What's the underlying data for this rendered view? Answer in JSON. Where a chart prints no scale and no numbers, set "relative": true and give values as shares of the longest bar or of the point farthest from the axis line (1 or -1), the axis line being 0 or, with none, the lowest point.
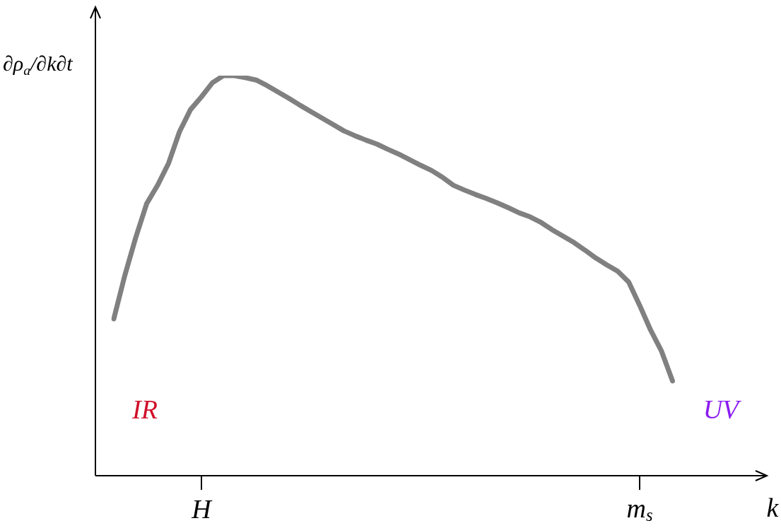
{
  "chart_data": {
    "type": "line",
    "relative": true,
    "xlabel": "k",
    "ylabel": "∂ρ$_{a}$/∂k∂t",
    "grid": false,
    "legend": false,
    "marker": "none",
    "line_style": "solid",
    "categories": [
      null,
      null,
      null,
      null,
      null,
      null,
      null,
      null,
      "H",
      null,
      null,
      null,
      null,
      null,
      null,
      null,
      null,
      null,
      null,
      null,
      null,
      null,
      null,
      null,
      null,
      null,
      null,
      null,
      null,
      null,
      null,
      null,
      null,
      null,
      null,
      null,
      null,
      null,
      null,
      null,
      null,
      null,
      null,
      null,
      null,
      null,
      null,
      null,
      "m$_{s}$",
      null,
      null,
      null
    ],
    "series": [
      {
        "color": "#808080",
        "values": [
          0.392,
          0.5,
          0.595,
          0.68,
          0.726,
          0.781,
          0.86,
          0.915,
          0.947,
          0.982,
          1,
          1,
          0.995,
          0.989,
          0.975,
          0.959,
          0.943,
          0.926,
          0.91,
          0.894,
          0.878,
          0.862,
          0.85,
          0.839,
          0.829,
          0.816,
          0.804,
          0.79,
          0.776,
          0.763,
          0.746,
          0.726,
          0.714,
          0.703,
          0.693,
          0.682,
          0.67,
          0.657,
          0.647,
          0.633,
          0.615,
          0.599,
          0.583,
          0.564,
          0.544,
          0.527,
          0.511,
          0.484,
          0.426,
          0.364,
          0.311,
          0.237
        ]
      }
    ],
    "annotations": [
      "IR",
      "UV"
    ]
  }
}
